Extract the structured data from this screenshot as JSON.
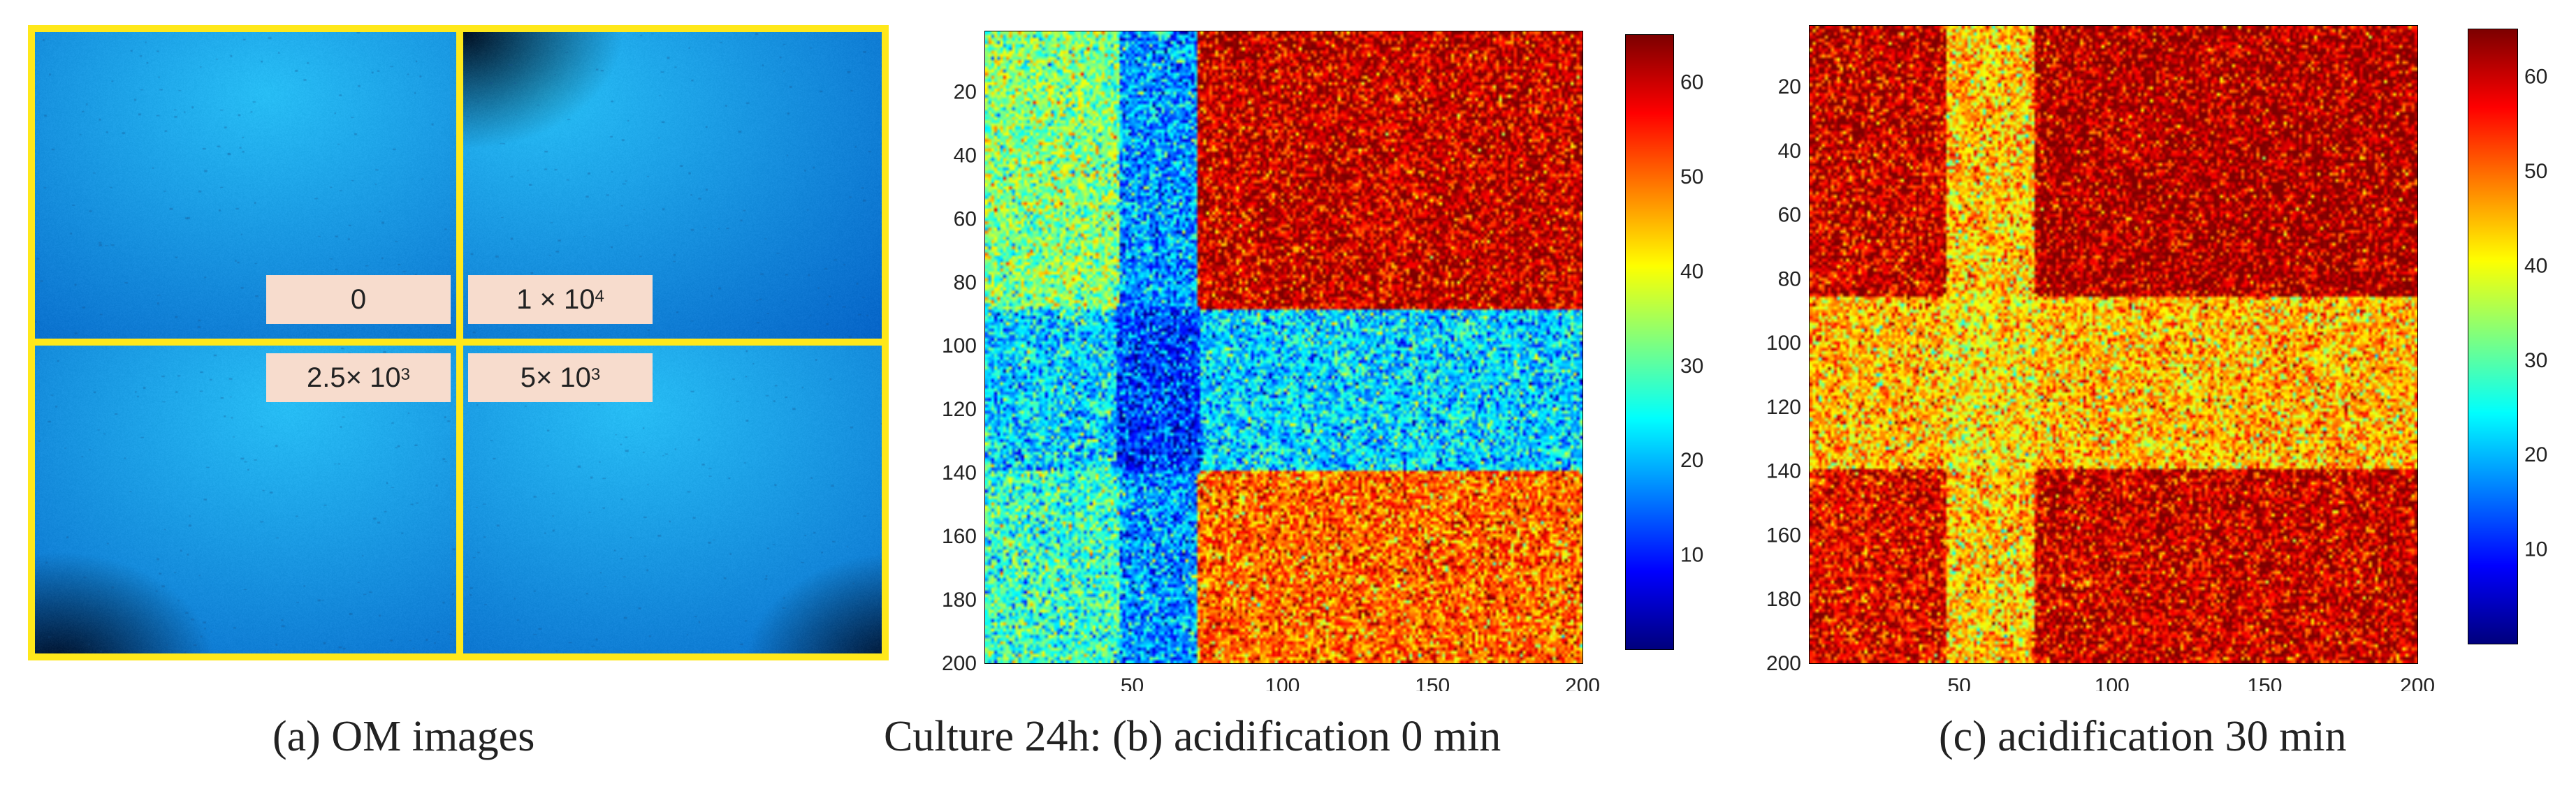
{
  "panels": {
    "a": {
      "caption": "(a) OM images",
      "labels": [
        {
          "id": "tl",
          "text": "0",
          "base": "0",
          "exp": ""
        },
        {
          "id": "tr",
          "text": "1 × 10⁴",
          "base": "1 × 10",
          "exp": "4"
        },
        {
          "id": "bl",
          "text": "2.5× 10³",
          "base": "2.5× 10",
          "exp": "3"
        },
        {
          "id": "br",
          "text": "5× 10³",
          "base": "5× 10",
          "exp": "3"
        }
      ],
      "colors": {
        "frame": "#ffe81a",
        "label_bg": "#f7dccd",
        "image_blue": "#1ea8ec"
      }
    },
    "b": {
      "caption": "Culture 24h: (b) acidification 0 min"
    },
    "c": {
      "caption": "(c) acidification 30 min"
    }
  },
  "chart_data": [
    {
      "type": "heatmap",
      "panel": "b",
      "title": "",
      "xlabel": "",
      "ylabel": "",
      "x_ticks": [
        50,
        100,
        150,
        200
      ],
      "y_ticks": [
        20,
        40,
        60,
        80,
        100,
        120,
        140,
        160,
        180,
        200
      ],
      "xlim": [
        1,
        200
      ],
      "ylim": [
        1,
        200
      ],
      "y_reversed": true,
      "colorbar": {
        "ticks": [
          10,
          20,
          30,
          40,
          50,
          60
        ],
        "range": [
          0,
          65
        ],
        "colormap": "jet"
      },
      "regions": [
        {
          "name": "horizontal band",
          "y": [
            88,
            140
          ],
          "value": 22
        },
        {
          "name": "vertical band",
          "x": [
            45,
            72
          ],
          "value": 18
        },
        {
          "name": "crossing",
          "x": [
            45,
            72
          ],
          "y": [
            88,
            140
          ],
          "value": 12
        },
        {
          "name": "top-left",
          "x": [
            1,
            45
          ],
          "y": [
            1,
            88
          ],
          "value": 33
        },
        {
          "name": "top-right",
          "x": [
            72,
            200
          ],
          "y": [
            1,
            88
          ],
          "value": 60
        },
        {
          "name": "bottom-left",
          "x": [
            1,
            45
          ],
          "y": [
            140,
            200
          ],
          "value": 28
        },
        {
          "name": "bottom-right",
          "x": [
            72,
            200
          ],
          "y": [
            140,
            200
          ],
          "value": 50
        }
      ],
      "noise": 7,
      "grid": false
    },
    {
      "type": "heatmap",
      "panel": "c",
      "title": "",
      "xlabel": "",
      "ylabel": "",
      "x_ticks": [
        50,
        100,
        150,
        200
      ],
      "y_ticks": [
        20,
        40,
        60,
        80,
        100,
        120,
        140,
        160,
        180,
        200
      ],
      "xlim": [
        1,
        200
      ],
      "ylim": [
        1,
        200
      ],
      "y_reversed": true,
      "colorbar": {
        "ticks": [
          10,
          20,
          30,
          40,
          50,
          60
        ],
        "range": [
          0,
          65
        ],
        "colormap": "jet"
      },
      "regions": [
        {
          "name": "horizontal band",
          "y": [
            85,
            140
          ],
          "value": 45
        },
        {
          "name": "vertical band",
          "x": [
            45,
            75
          ],
          "value": 44
        },
        {
          "name": "crossing",
          "x": [
            45,
            75
          ],
          "y": [
            85,
            140
          ],
          "value": 42
        },
        {
          "name": "top-left",
          "x": [
            1,
            45
          ],
          "y": [
            1,
            85
          ],
          "value": 60
        },
        {
          "name": "top-right",
          "x": [
            75,
            200
          ],
          "y": [
            1,
            85
          ],
          "value": 62
        },
        {
          "name": "bottom-left",
          "x": [
            1,
            45
          ],
          "y": [
            140,
            200
          ],
          "value": 58
        },
        {
          "name": "bottom-right",
          "x": [
            75,
            200
          ],
          "y": [
            140,
            200
          ],
          "value": 60
        }
      ],
      "noise": 7,
      "grid": false
    }
  ]
}
